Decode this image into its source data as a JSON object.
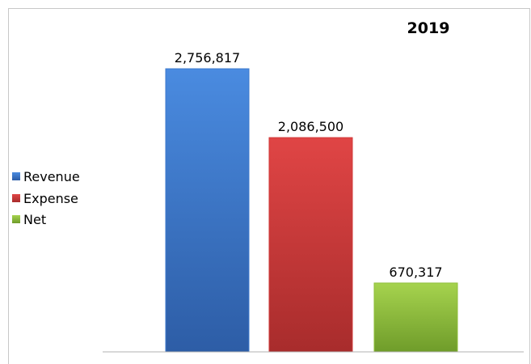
{
  "chart_data": {
    "type": "bar",
    "title": "2019",
    "categories": [
      "Revenue",
      "Expense",
      "Net"
    ],
    "values": [
      2756817,
      2086500,
      670317
    ],
    "value_labels": [
      "2,756,817",
      "2,086,500",
      "670,317"
    ],
    "colors": [
      "#3c78cc",
      "#d23a3a",
      "#8fbf3a"
    ],
    "legend": {
      "position": "left",
      "entries": [
        "Revenue",
        "Expense",
        "Net"
      ]
    },
    "xlabel": "",
    "ylabel": "",
    "ylim": [
      0,
      3000000
    ],
    "grid": false
  }
}
